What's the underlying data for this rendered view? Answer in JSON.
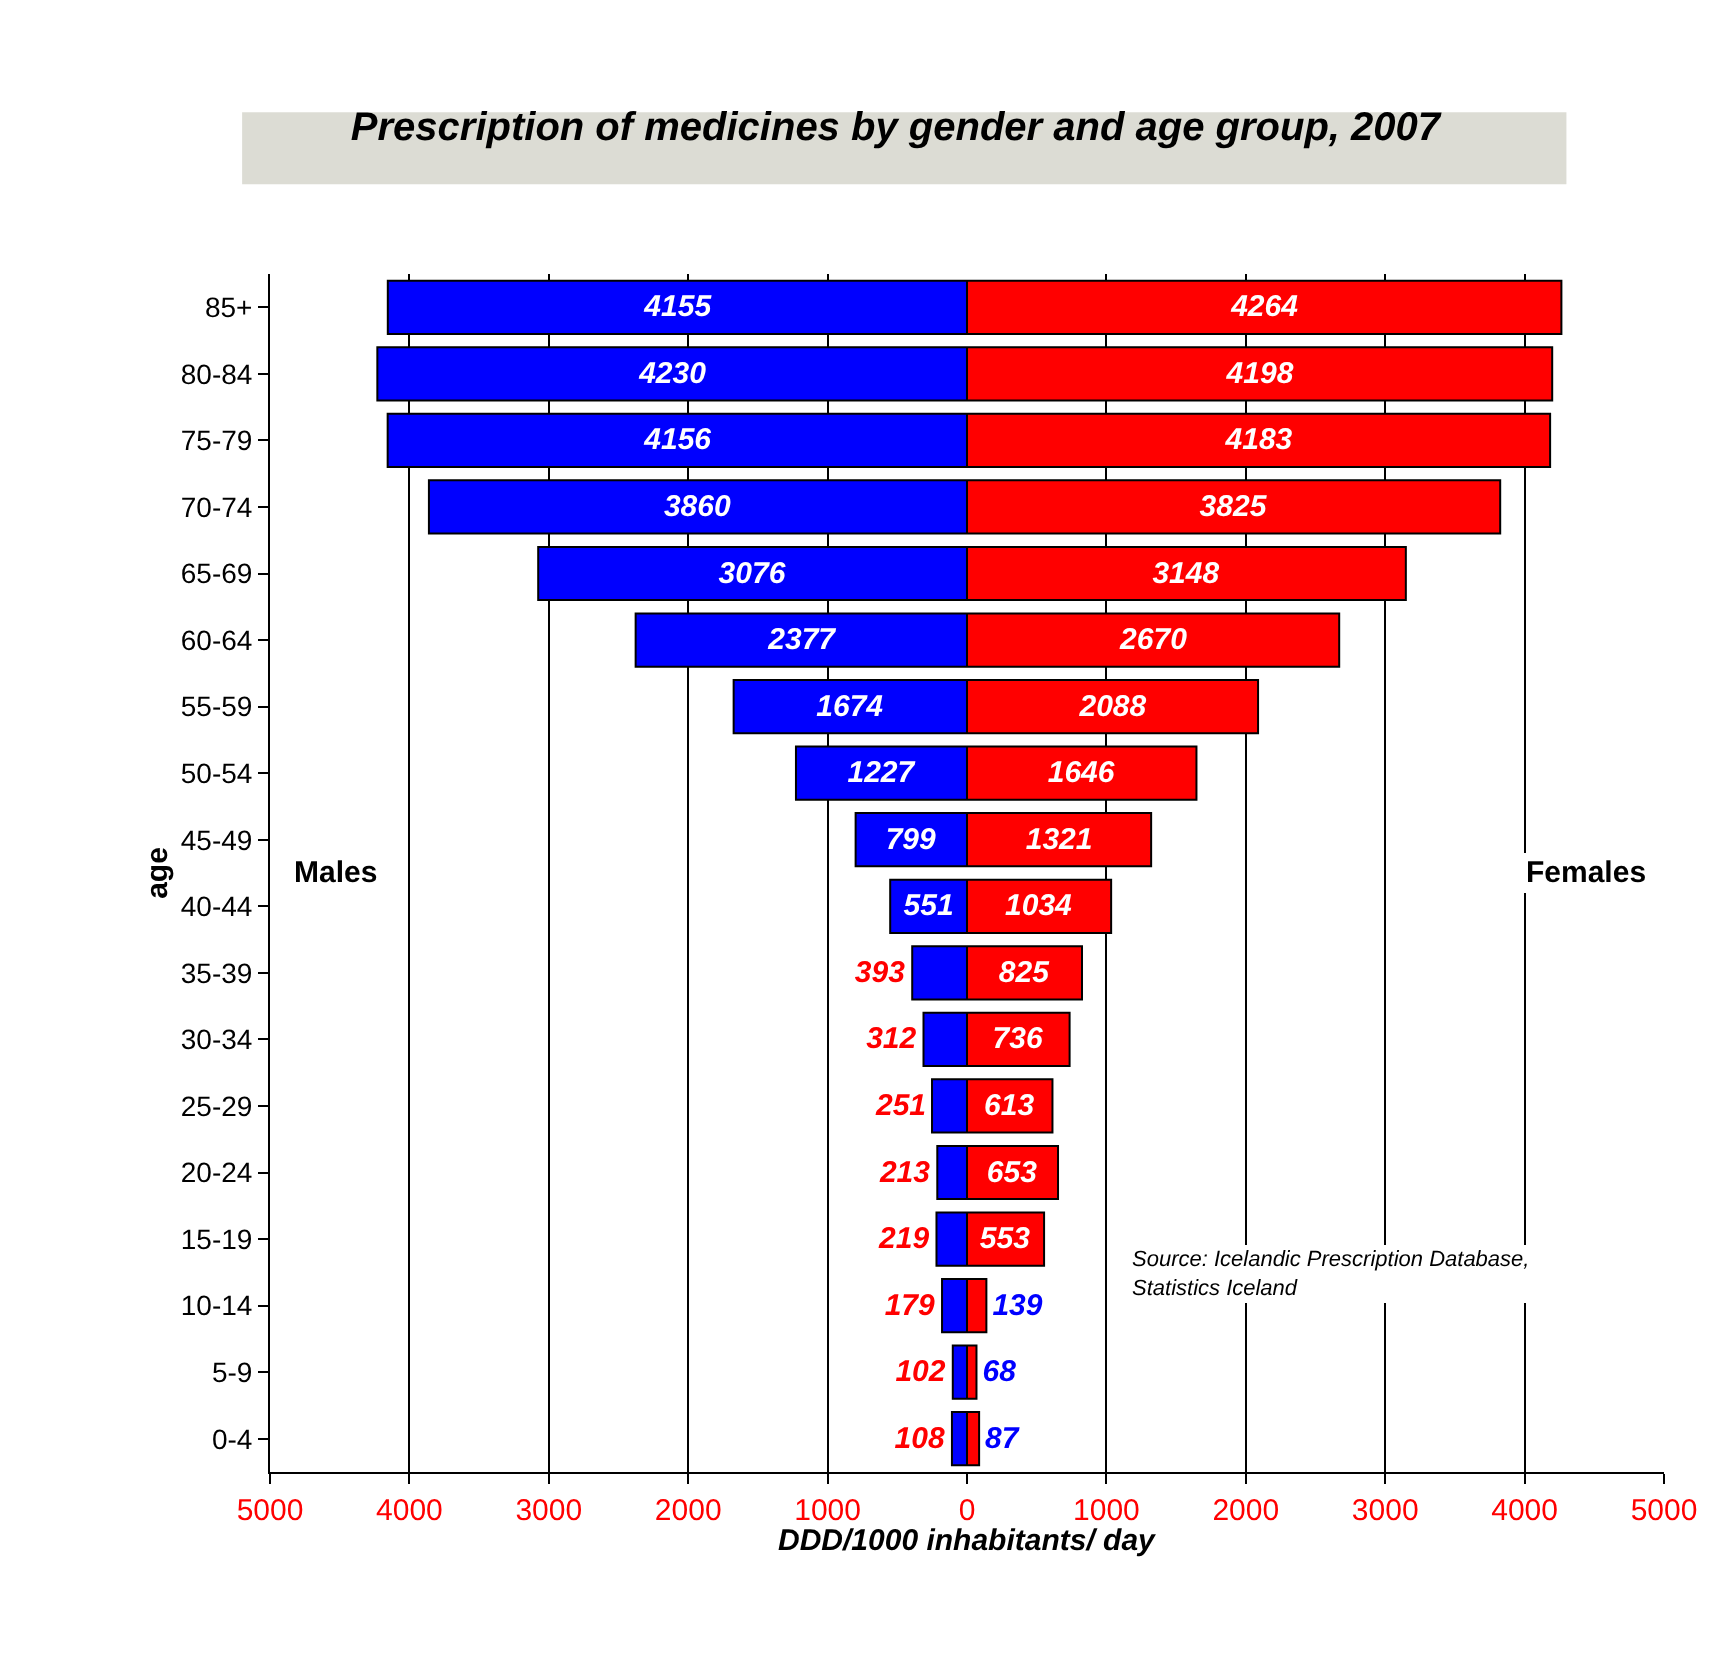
{
  "chart_data": [
    {
      "type": "bar",
      "orientation": "horizontal",
      "title": "Prescription of medicines by gender and age group, 2007",
      "xlabel": "DDD/1000 inhabitants/ day",
      "ylabel": "age",
      "categories": [
        "85+",
        "80-84",
        "75-79",
        "70-74",
        "65-69",
        "60-64",
        "55-59",
        "50-54",
        "45-49",
        "40-44",
        "35-39",
        "30-34",
        "25-29",
        "20-24",
        "15-19",
        "10-14",
        "5-9",
        "0-4"
      ],
      "series": [
        {
          "color": "#0000ff",
          "values": [
            4155,
            4230,
            4156,
            3860,
            3076,
            2377,
            1674,
            1227,
            799,
            551,
            393,
            312,
            251,
            213,
            219,
            179,
            102,
            108
          ]
        }
      ],
      "data_labels": true,
      "xlim": [
        5000,
        0
      ],
      "xticks": [
        5000,
        4000,
        3000,
        2000,
        1000,
        0
      ],
      "grid": "x",
      "annotations": [
        "Males"
      ]
    },
    {
      "type": "bar",
      "orientation": "horizontal",
      "categories": [
        "85+",
        "80-84",
        "75-79",
        "70-74",
        "65-69",
        "60-64",
        "55-59",
        "50-54",
        "45-49",
        "40-44",
        "35-39",
        "30-34",
        "25-29",
        "20-24",
        "15-19",
        "10-14",
        "5-9",
        "0-4"
      ],
      "series": [
        {
          "color": "#ff0000",
          "values": [
            4264,
            4198,
            4183,
            3825,
            3148,
            2670,
            2088,
            1646,
            1321,
            1034,
            825,
            736,
            613,
            653,
            553,
            139,
            68,
            87
          ]
        }
      ],
      "data_labels": true,
      "xlim": [
        0,
        5000
      ],
      "xticks": [
        {
          "value": 0,
          "label": null
        },
        1000,
        2000,
        3000,
        4000,
        5000
      ],
      "grid": "x",
      "tick_labels": "x",
      "annotations": [
        "Females",
        "Source: Icelandic Prescription Database,\nStatistics Iceland"
      ]
    }
  ]
}
